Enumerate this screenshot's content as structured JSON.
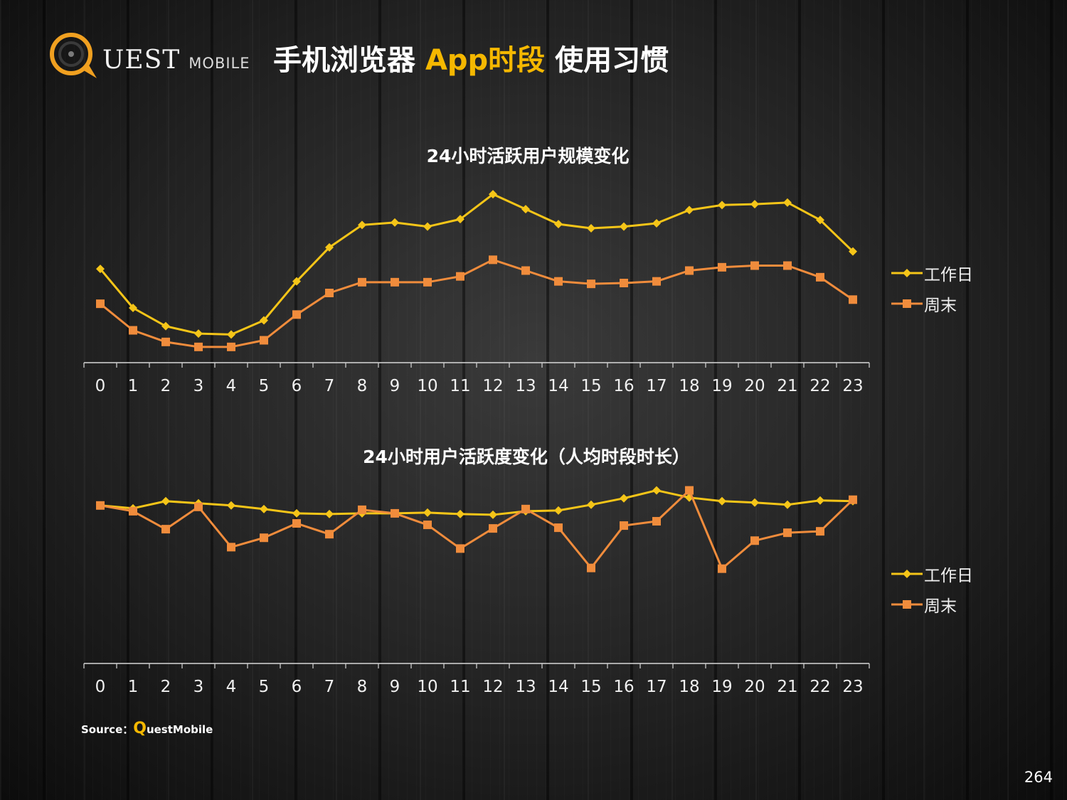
{
  "logo": {
    "text": "UEST",
    "subtext": "MOBILE",
    "mark_color": "#f0a020"
  },
  "header": {
    "title_part1": "手机浏览器 ",
    "title_highlight": "App时段",
    "title_part2": " 使用习惯",
    "highlight_color": "#f5b800"
  },
  "source": {
    "label": "Source：",
    "q": "Q",
    "brand": "uestMobile"
  },
  "page_number": "264",
  "colors": {
    "workday": "#f5c518",
    "weekend": "#f08c3c",
    "axis": "#d8d8d8"
  },
  "chart_data": [
    {
      "type": "line",
      "title": "24小时活跃用户规模变化",
      "categories": [
        "0",
        "1",
        "2",
        "3",
        "4",
        "5",
        "6",
        "7",
        "8",
        "9",
        "10",
        "11",
        "12",
        "13",
        "14",
        "15",
        "16",
        "17",
        "18",
        "19",
        "20",
        "21",
        "22",
        "23"
      ],
      "series": [
        {
          "name": "工作日",
          "marker": "diamond",
          "values": [
            113,
            66,
            44,
            35,
            34,
            51,
            98,
            139,
            166,
            169,
            164,
            173,
            203,
            185,
            167,
            162,
            164,
            168,
            184,
            190,
            191,
            193,
            172,
            134
          ]
        },
        {
          "name": "周末",
          "marker": "square",
          "values": [
            71,
            39,
            25,
            19,
            19,
            27,
            58,
            84,
            97,
            97,
            97,
            104,
            124,
            111,
            98,
            95,
            96,
            98,
            111,
            115,
            117,
            117,
            103,
            76
          ]
        }
      ],
      "ylim": [
        0,
        240
      ],
      "legend": "right"
    },
    {
      "type": "line",
      "title": "24小时用户活跃度变化（人均时段时长）",
      "categories": [
        "0",
        "1",
        "2",
        "3",
        "4",
        "5",
        "6",
        "7",
        "8",
        "9",
        "10",
        "11",
        "12",
        "13",
        "14",
        "15",
        "16",
        "17",
        "18",
        "19",
        "20",
        "21",
        "22",
        "23"
      ],
      "series": [
        {
          "name": "工作日",
          "marker": "diamond",
          "values": [
            220,
            216,
            226,
            223,
            220,
            215,
            209,
            208,
            209,
            209,
            210,
            208,
            207,
            212,
            213,
            221,
            230,
            241,
            231,
            226,
            224,
            221,
            227,
            226
          ]
        },
        {
          "name": "周末",
          "marker": "square",
          "values": [
            220,
            212,
            187,
            218,
            162,
            175,
            195,
            180,
            214,
            209,
            193,
            160,
            188,
            215,
            189,
            133,
            192,
            198,
            241,
            132,
            171,
            182,
            184,
            228
          ]
        }
      ],
      "ylim": [
        0,
        300
      ],
      "legend": "right"
    }
  ]
}
